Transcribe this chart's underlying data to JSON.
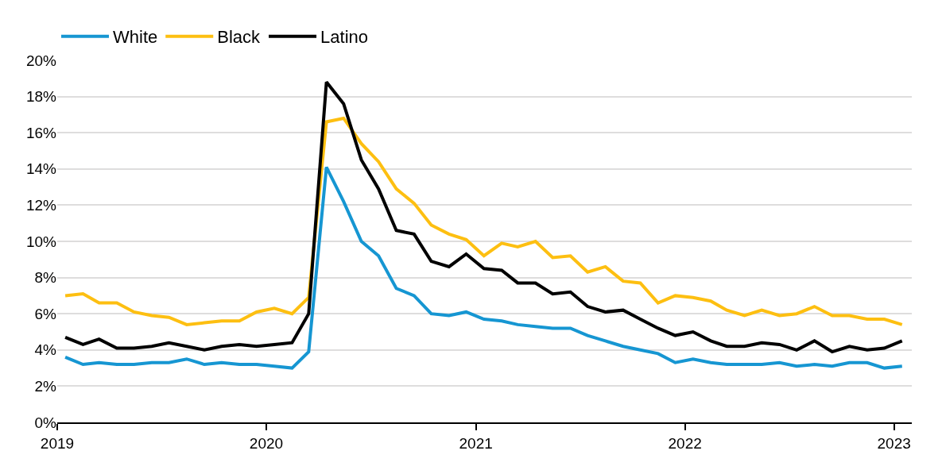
{
  "chart_data": {
    "type": "line",
    "x": [
      "2019-01-15",
      "2019-02-15",
      "2019-03-15",
      "2019-04-15",
      "2019-05-15",
      "2019-06-15",
      "2019-07-15",
      "2019-08-15",
      "2019-09-15",
      "2019-10-15",
      "2019-11-15",
      "2019-12-15",
      "2020-01-15",
      "2020-02-15",
      "2020-03-15",
      "2020-04-15",
      "2020-05-15",
      "2020-06-15",
      "2020-07-15",
      "2020-08-15",
      "2020-09-15",
      "2020-10-15",
      "2020-11-15",
      "2020-12-15",
      "2021-01-15",
      "2021-02-15",
      "2021-03-15",
      "2021-04-15",
      "2021-05-15",
      "2021-06-15",
      "2021-07-15",
      "2021-08-15",
      "2021-09-15",
      "2021-10-15",
      "2021-11-15",
      "2021-12-15",
      "2022-01-15",
      "2022-02-15",
      "2022-03-15",
      "2022-04-15",
      "2022-05-15",
      "2022-06-15",
      "2022-07-15",
      "2022-08-15",
      "2022-09-15",
      "2022-10-15",
      "2022-11-15",
      "2022-12-15",
      "2023-01-15"
    ],
    "series": [
      {
        "name": "White",
        "color": "#1696d2",
        "values": [
          3.6,
          3.2,
          3.3,
          3.2,
          3.2,
          3.3,
          3.3,
          3.5,
          3.2,
          3.3,
          3.2,
          3.2,
          3.1,
          3.0,
          3.9,
          14.1,
          12.2,
          10.0,
          9.2,
          7.4,
          7.0,
          6.0,
          5.9,
          6.1,
          5.7,
          5.6,
          5.4,
          5.3,
          5.2,
          5.2,
          4.8,
          4.5,
          4.2,
          4.0,
          3.8,
          3.3,
          3.5,
          3.3,
          3.2,
          3.2,
          3.2,
          3.3,
          3.1,
          3.2,
          3.1,
          3.3,
          3.3,
          3.0,
          3.1
        ]
      },
      {
        "name": "Black",
        "color": "#fdbf11",
        "values": [
          7.0,
          7.1,
          6.6,
          6.6,
          6.1,
          5.9,
          5.8,
          5.4,
          5.5,
          5.6,
          5.6,
          6.1,
          6.3,
          6.0,
          6.9,
          16.6,
          16.8,
          15.4,
          14.4,
          12.9,
          12.1,
          10.9,
          10.4,
          10.1,
          9.2,
          9.9,
          9.7,
          10.0,
          9.1,
          9.2,
          8.3,
          8.6,
          7.8,
          7.7,
          6.6,
          7.0,
          6.9,
          6.7,
          6.2,
          5.9,
          6.2,
          5.9,
          6.0,
          6.4,
          5.9,
          5.9,
          5.7,
          5.7,
          5.4
        ]
      },
      {
        "name": "Latino",
        "color": "#000000",
        "values": [
          4.7,
          4.3,
          4.6,
          4.1,
          4.1,
          4.2,
          4.4,
          4.2,
          4.0,
          4.2,
          4.3,
          4.2,
          4.3,
          4.4,
          6.0,
          18.8,
          17.6,
          14.5,
          12.9,
          10.6,
          10.4,
          8.9,
          8.6,
          9.3,
          8.5,
          8.4,
          7.7,
          7.7,
          7.1,
          7.2,
          6.4,
          6.1,
          6.2,
          5.7,
          5.2,
          4.8,
          5.0,
          4.5,
          4.2,
          4.2,
          4.4,
          4.3,
          4.0,
          4.5,
          3.9,
          4.2,
          4.0,
          4.1,
          4.5
        ]
      }
    ],
    "xlim": [
      "2019-01-01",
      "2023-02-01"
    ],
    "xticks": [
      {
        "value": "2019-01-01",
        "label": "2019"
      },
      {
        "value": "2020-01-01",
        "label": "2020"
      },
      {
        "value": "2021-01-01",
        "label": "2021"
      },
      {
        "value": "2022-01-01",
        "label": "2022"
      },
      {
        "value": "2023-01-01",
        "label": "2023"
      }
    ],
    "ylim": [
      0,
      20
    ],
    "yticks": [
      {
        "value": 0,
        "label": "0%"
      },
      {
        "value": 2,
        "label": "2%"
      },
      {
        "value": 4,
        "label": "4%"
      },
      {
        "value": 6,
        "label": "6%"
      },
      {
        "value": 8,
        "label": "8%"
      },
      {
        "value": 10,
        "label": "10%"
      },
      {
        "value": 12,
        "label": "12%"
      },
      {
        "value": 14,
        "label": "14%"
      },
      {
        "value": 16,
        "label": "16%"
      },
      {
        "value": 18,
        "label": "18%"
      },
      {
        "value": 20,
        "label": "20%"
      }
    ],
    "grid": "y",
    "legend": "top left",
    "marker": "none",
    "line_style": "solid"
  }
}
